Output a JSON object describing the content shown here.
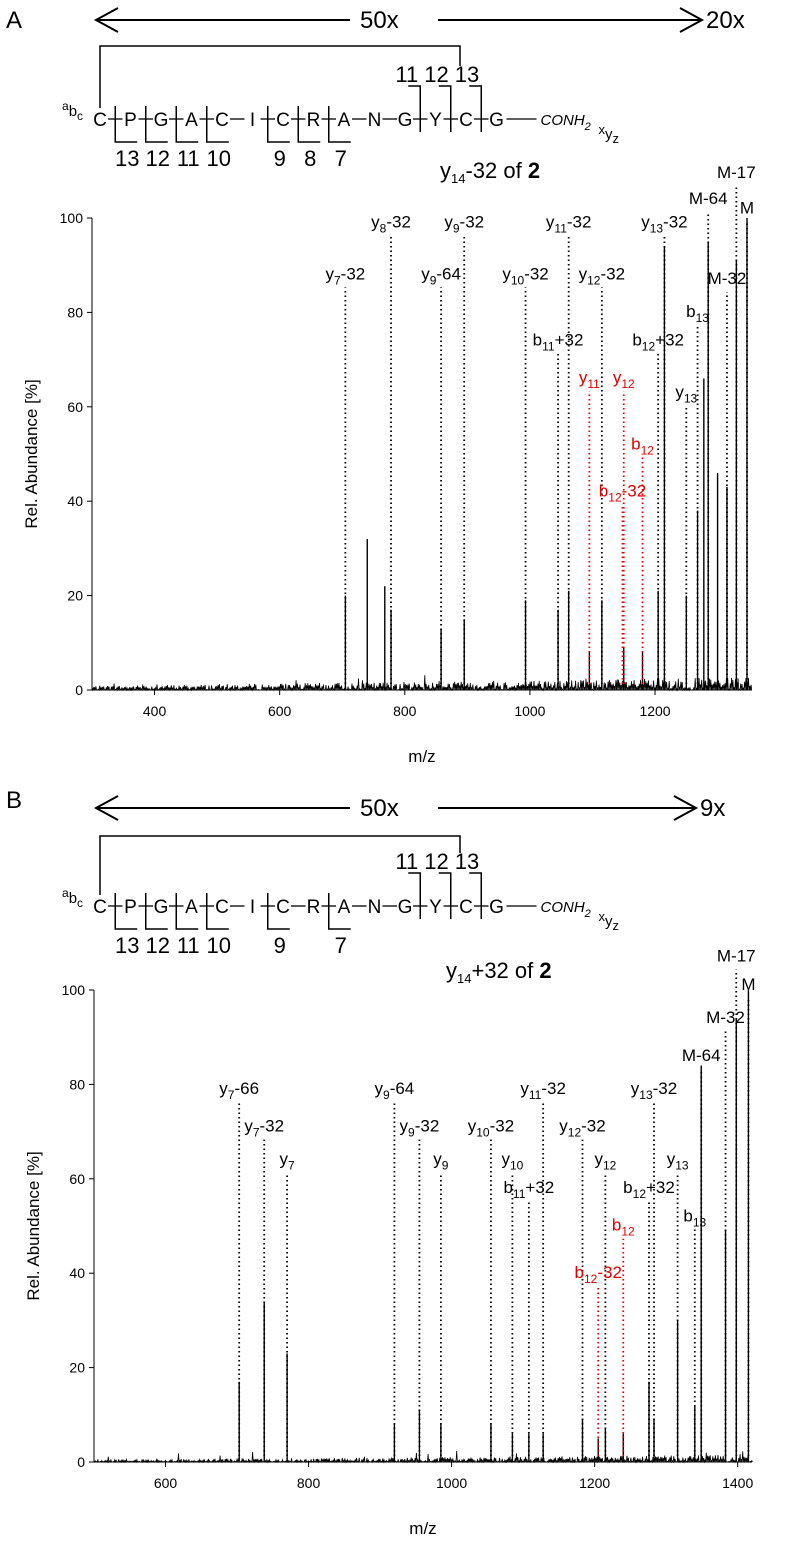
{
  "panels": [
    {
      "label": "A",
      "mag_left": "50x",
      "mag_right": "20x",
      "sequence": [
        "C",
        "P",
        "G",
        "A",
        "C",
        "I",
        "C",
        "R",
        "A",
        "N",
        "G",
        "Y",
        "C",
        "G"
      ],
      "cterm": "CONH",
      "cterm_sub": "2",
      "nterm_sup": "a",
      "nterm_b": "b",
      "nterm_sub": "c",
      "xyz_x": "x",
      "xyz_y": "y",
      "xyz_z": "z",
      "b_numbers": [
        "11",
        "12",
        "13"
      ],
      "y_numbers": [
        "13",
        "12",
        "11",
        "10",
        "9",
        "8",
        "7"
      ],
      "title_pre": "y",
      "title_sub": "14",
      "title_mid": "-32 of ",
      "title_bold": "2"
    },
    {
      "label": "B",
      "mag_left": "50x",
      "mag_right": "9x",
      "sequence": [
        "C",
        "P",
        "G",
        "A",
        "C",
        "I",
        "C",
        "R",
        "A",
        "N",
        "G",
        "Y",
        "C",
        "G"
      ],
      "cterm": "CONH",
      "cterm_sub": "2",
      "nterm_sup": "a",
      "nterm_b": "b",
      "nterm_sub": "c",
      "xyz_x": "x",
      "xyz_y": "y",
      "xyz_z": "z",
      "b_numbers": [
        "11",
        "12",
        "13"
      ],
      "y_numbers": [
        "13",
        "12",
        "11",
        "10",
        "9",
        "7"
      ],
      "title_pre": "y",
      "title_sub": "14",
      "title_mid": "+32 of ",
      "title_bold": "2"
    }
  ],
  "chart_data": [
    {
      "type": "line",
      "xlabel": "m/z",
      "ylabel": "Rel. Abundance [%]",
      "xlim": [
        300,
        1355
      ],
      "ylim": [
        0,
        100
      ],
      "xticks": [
        400,
        600,
        800,
        1000,
        1200
      ],
      "yticks": [
        0,
        20,
        40,
        60,
        80,
        100
      ],
      "peaks": [
        {
          "x": 705,
          "y": 20
        },
        {
          "x": 740,
          "y": 32
        },
        {
          "x": 768,
          "y": 22
        },
        {
          "x": 778,
          "y": 17
        },
        {
          "x": 858,
          "y": 13
        },
        {
          "x": 895,
          "y": 15
        },
        {
          "x": 993,
          "y": 19
        },
        {
          "x": 1045,
          "y": 17
        },
        {
          "x": 1062,
          "y": 21
        },
        {
          "x": 1095,
          "y": 8
        },
        {
          "x": 1115,
          "y": 19
        },
        {
          "x": 1150,
          "y": 9
        },
        {
          "x": 1180,
          "y": 8
        },
        {
          "x": 1205,
          "y": 21
        },
        {
          "x": 1215,
          "y": 94
        },
        {
          "x": 1250,
          "y": 20
        },
        {
          "x": 1268,
          "y": 38
        },
        {
          "x": 1278,
          "y": 66
        },
        {
          "x": 1285,
          "y": 95
        },
        {
          "x": 1300,
          "y": 46
        },
        {
          "x": 1315,
          "y": 43
        },
        {
          "x": 1330,
          "y": 91
        },
        {
          "x": 1347,
          "y": 100
        }
      ],
      "annotations": [
        {
          "pre": "y",
          "sub": "7",
          "post": "-32",
          "x": 705,
          "level": 87,
          "color": "black"
        },
        {
          "pre": "y",
          "sub": "8",
          "post": "-32",
          "x": 778,
          "level": 98,
          "color": "black"
        },
        {
          "pre": "y",
          "sub": "9",
          "post": "-64",
          "x": 858,
          "level": 87,
          "color": "black"
        },
        {
          "pre": "y",
          "sub": "9",
          "post": "-32",
          "x": 895,
          "level": 98,
          "color": "black"
        },
        {
          "pre": "y",
          "sub": "10",
          "post": "-32",
          "x": 993,
          "level": 87,
          "color": "black"
        },
        {
          "pre": "b",
          "sub": "11",
          "post": "+32",
          "x": 1045,
          "level": 73,
          "color": "black"
        },
        {
          "pre": "y",
          "sub": "11",
          "post": "-32",
          "x": 1062,
          "level": 98,
          "color": "black"
        },
        {
          "pre": "y",
          "sub": "12",
          "post": "-32",
          "x": 1115,
          "level": 87,
          "color": "black"
        },
        {
          "pre": "y",
          "sub": "11",
          "post": "",
          "x": 1095,
          "level": 65,
          "color": "red"
        },
        {
          "pre": "y",
          "sub": "12",
          "post": "",
          "x": 1150,
          "level": 65,
          "color": "red"
        },
        {
          "pre": "b",
          "sub": "12",
          "post": "",
          "x": 1180,
          "level": 51,
          "color": "red"
        },
        {
          "pre": "b",
          "sub": "12",
          "post": "-32",
          "x": 1148,
          "level": 41,
          "color": "red"
        },
        {
          "pre": "b",
          "sub": "12",
          "post": "+32",
          "x": 1205,
          "level": 73,
          "color": "black"
        },
        {
          "pre": "y",
          "sub": "13",
          "post": "-32",
          "x": 1215,
          "level": 98,
          "color": "black"
        },
        {
          "pre": "y",
          "sub": "13",
          "post": "",
          "x": 1250,
          "level": 62,
          "color": "black"
        },
        {
          "pre": "b",
          "sub": "13",
          "post": "",
          "x": 1268,
          "level": 79,
          "color": "black"
        },
        {
          "pre": "M-64",
          "sub": "",
          "post": "",
          "x": 1285,
          "level": 103,
          "color": "black"
        },
        {
          "pre": "M-32",
          "sub": "",
          "post": "",
          "x": 1315,
          "level": 86,
          "color": "black"
        },
        {
          "pre": "M-17",
          "sub": "",
          "post": "",
          "x": 1330,
          "level": 110,
          "color": "black"
        },
        {
          "pre": "M",
          "sub": "",
          "post": "",
          "x": 1347,
          "level": 101,
          "color": "black"
        }
      ]
    },
    {
      "type": "line",
      "xlabel": "m/z",
      "ylabel": "Rel. Abundance [%]",
      "xlim": [
        500,
        1420
      ],
      "ylim": [
        0,
        100
      ],
      "xticks": [
        600,
        800,
        1000,
        1200,
        1400
      ],
      "yticks": [
        0,
        20,
        40,
        60,
        80,
        100
      ],
      "peaks": [
        {
          "x": 703,
          "y": 17
        },
        {
          "x": 738,
          "y": 34
        },
        {
          "x": 770,
          "y": 23
        },
        {
          "x": 920,
          "y": 8
        },
        {
          "x": 955,
          "y": 11
        },
        {
          "x": 985,
          "y": 8
        },
        {
          "x": 1055,
          "y": 8
        },
        {
          "x": 1085,
          "y": 6
        },
        {
          "x": 1108,
          "y": 6
        },
        {
          "x": 1128,
          "y": 6
        },
        {
          "x": 1183,
          "y": 9
        },
        {
          "x": 1205,
          "y": 5
        },
        {
          "x": 1215,
          "y": 7
        },
        {
          "x": 1240,
          "y": 6
        },
        {
          "x": 1276,
          "y": 17
        },
        {
          "x": 1283,
          "y": 9
        },
        {
          "x": 1316,
          "y": 30
        },
        {
          "x": 1340,
          "y": 12
        },
        {
          "x": 1349,
          "y": 84
        },
        {
          "x": 1383,
          "y": 49
        },
        {
          "x": 1398,
          "y": 94
        },
        {
          "x": 1415,
          "y": 100
        }
      ],
      "annotations": [
        {
          "pre": "y",
          "sub": "7",
          "post": "-66",
          "x": 703,
          "level": 78,
          "color": "black"
        },
        {
          "pre": "y",
          "sub": "7",
          "post": "-32",
          "x": 738,
          "level": 70,
          "color": "black"
        },
        {
          "pre": "y",
          "sub": "7",
          "post": "",
          "x": 770,
          "level": 63,
          "color": "black"
        },
        {
          "pre": "y",
          "sub": "9",
          "post": "-64",
          "x": 920,
          "level": 78,
          "color": "black"
        },
        {
          "pre": "y",
          "sub": "9",
          "post": "-32",
          "x": 955,
          "level": 70,
          "color": "black"
        },
        {
          "pre": "y",
          "sub": "9",
          "post": "",
          "x": 985,
          "level": 63,
          "color": "black"
        },
        {
          "pre": "y",
          "sub": "10",
          "post": "-32",
          "x": 1055,
          "level": 70,
          "color": "black"
        },
        {
          "pre": "y",
          "sub": "10",
          "post": "",
          "x": 1085,
          "level": 63,
          "color": "black"
        },
        {
          "pre": "b",
          "sub": "11",
          "post": "+32",
          "x": 1108,
          "level": 57,
          "color": "black"
        },
        {
          "pre": "y",
          "sub": "11",
          "post": "-32",
          "x": 1128,
          "level": 78,
          "color": "black"
        },
        {
          "pre": "y",
          "sub": "12",
          "post": "-32",
          "x": 1183,
          "level": 70,
          "color": "black"
        },
        {
          "pre": "y",
          "sub": "12",
          "post": "",
          "x": 1215,
          "level": 63,
          "color": "black"
        },
        {
          "pre": "b",
          "sub": "12",
          "post": "",
          "x": 1240,
          "level": 49,
          "color": "red"
        },
        {
          "pre": "b",
          "sub": "12",
          "post": "-32",
          "x": 1205,
          "level": 39,
          "color": "red"
        },
        {
          "pre": "b",
          "sub": "12",
          "post": "+32",
          "x": 1276,
          "level": 57,
          "color": "black"
        },
        {
          "pre": "y",
          "sub": "13",
          "post": "-32",
          "x": 1283,
          "level": 78,
          "color": "black"
        },
        {
          "pre": "y",
          "sub": "13",
          "post": "",
          "x": 1316,
          "level": 63,
          "color": "black"
        },
        {
          "pre": "b",
          "sub": "13",
          "post": "",
          "x": 1340,
          "level": 51,
          "color": "black"
        },
        {
          "pre": "M-64",
          "sub": "",
          "post": "",
          "x": 1349,
          "level": 85,
          "color": "black"
        },
        {
          "pre": "M-32",
          "sub": "",
          "post": "",
          "x": 1383,
          "level": 93,
          "color": "black"
        },
        {
          "pre": "M-17",
          "sub": "",
          "post": "",
          "x": 1398,
          "level": 106,
          "color": "black"
        },
        {
          "pre": "M",
          "sub": "",
          "post": "",
          "x": 1415,
          "level": 100,
          "color": "black"
        }
      ]
    }
  ]
}
